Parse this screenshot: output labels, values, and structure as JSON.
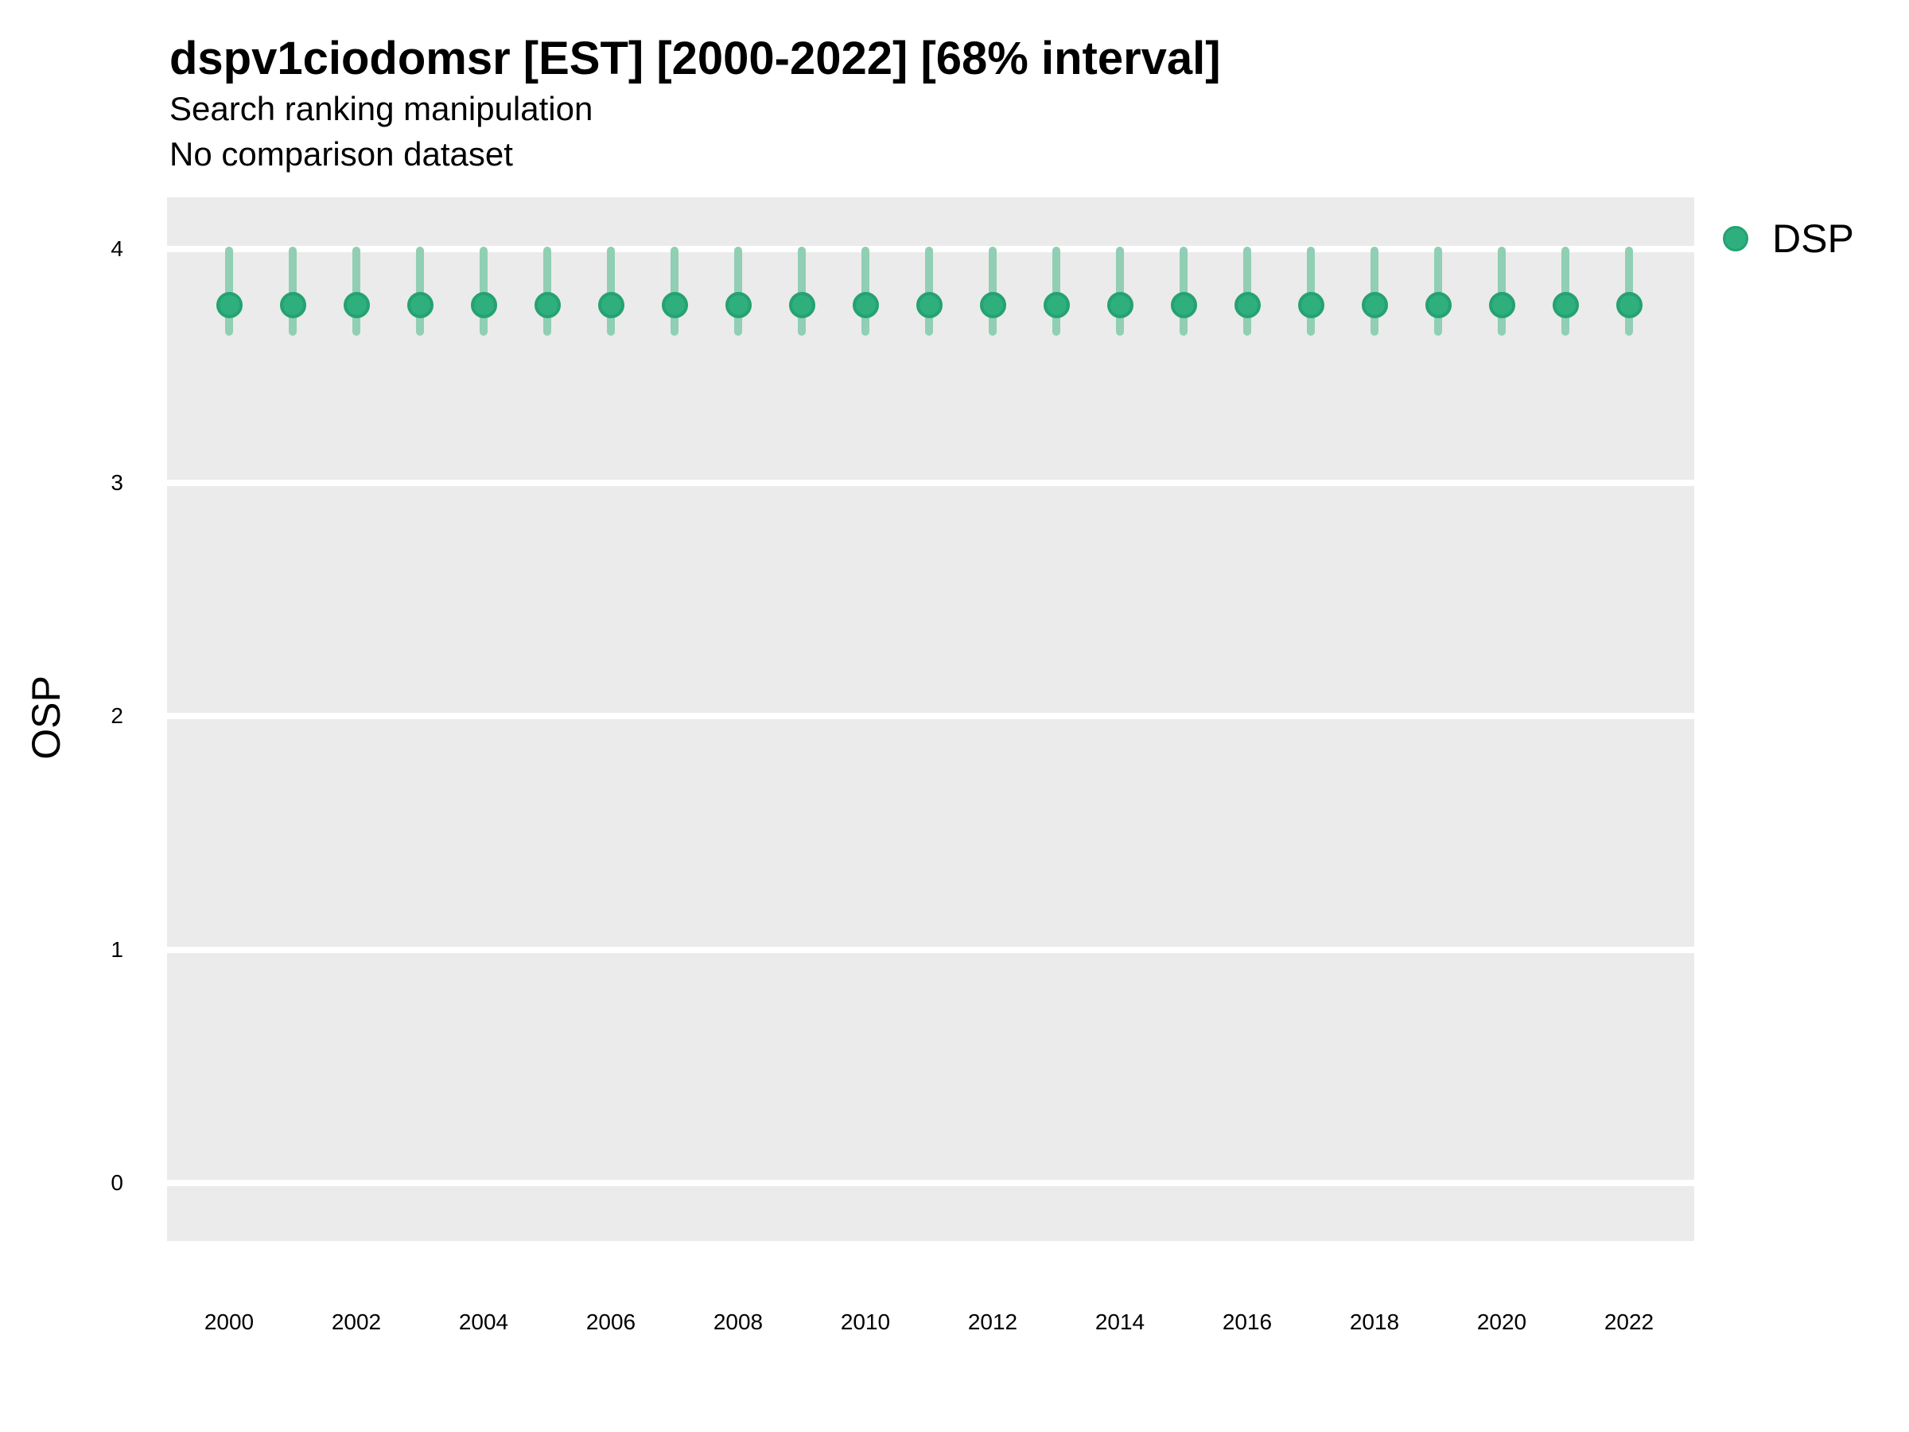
{
  "header": {
    "title": "dspv1ciodomsr [EST] [2000-2022] [68% interval]",
    "subtitle_line1": "Search ranking manipulation",
    "subtitle_line2": "No comparison dataset"
  },
  "y_axis": {
    "title": "OSP"
  },
  "legend": {
    "items": [
      {
        "label": "DSP",
        "marker": "circle-icon"
      }
    ]
  },
  "colors": {
    "panel_background": "#ebebeb",
    "gridline": "#ffffff",
    "interval": "#90cfb4",
    "point_fill": "#2fae7e",
    "point_stroke": "#25a271",
    "text": "#000000"
  },
  "chart_data": {
    "type": "pointrange",
    "title": "dspv1ciodomsr [EST] [2000-2022] [68% interval]",
    "subtitle": [
      "Search ranking manipulation",
      "No comparison dataset"
    ],
    "xlabel": "",
    "ylabel": "OSP",
    "interval_level": "68%",
    "legend_position": "right",
    "grid": "horizontal-major-only",
    "ylim": [
      -0.25,
      4.22
    ],
    "yticks": [
      0,
      1,
      2,
      3,
      4
    ],
    "xticks": [
      2000,
      2002,
      2004,
      2006,
      2008,
      2010,
      2012,
      2014,
      2016,
      2018,
      2020,
      2022
    ],
    "x": [
      2000,
      2001,
      2002,
      2003,
      2004,
      2005,
      2006,
      2007,
      2008,
      2009,
      2010,
      2011,
      2012,
      2013,
      2014,
      2015,
      2016,
      2017,
      2018,
      2019,
      2020,
      2021,
      2022
    ],
    "series": [
      {
        "name": "DSP",
        "values": [
          3.76,
          3.76,
          3.76,
          3.76,
          3.76,
          3.76,
          3.76,
          3.76,
          3.76,
          3.76,
          3.76,
          3.76,
          3.76,
          3.76,
          3.76,
          3.76,
          3.76,
          3.76,
          3.76,
          3.76,
          3.76,
          3.76,
          3.76
        ],
        "lower": [
          3.63,
          3.63,
          3.63,
          3.63,
          3.63,
          3.63,
          3.63,
          3.63,
          3.63,
          3.63,
          3.63,
          3.63,
          3.63,
          3.63,
          3.63,
          3.63,
          3.63,
          3.63,
          3.63,
          3.63,
          3.63,
          3.63,
          3.63
        ],
        "upper": [
          4.01,
          4.01,
          4.01,
          4.01,
          4.01,
          4.01,
          4.01,
          4.01,
          4.01,
          4.01,
          4.01,
          4.01,
          4.01,
          4.01,
          4.01,
          4.01,
          4.01,
          4.01,
          4.01,
          4.01,
          4.01,
          4.01,
          4.01
        ]
      }
    ]
  }
}
